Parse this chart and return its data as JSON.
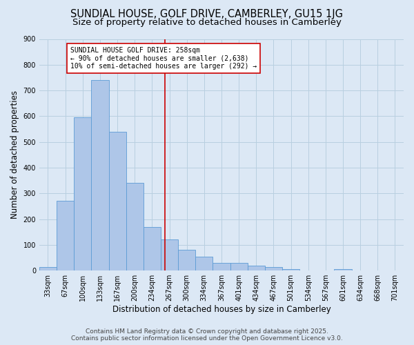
{
  "title": "SUNDIAL HOUSE, GOLF DRIVE, CAMBERLEY, GU15 1JG",
  "subtitle": "Size of property relative to detached houses in Camberley",
  "xlabel": "Distribution of detached houses by size in Camberley",
  "ylabel": "Number of detached properties",
  "categories": [
    "33sqm",
    "67sqm",
    "100sqm",
    "133sqm",
    "167sqm",
    "200sqm",
    "234sqm",
    "267sqm",
    "300sqm",
    "334sqm",
    "367sqm",
    "401sqm",
    "434sqm",
    "467sqm",
    "501sqm",
    "534sqm",
    "567sqm",
    "601sqm",
    "634sqm",
    "668sqm",
    "701sqm"
  ],
  "values": [
    15,
    270,
    595,
    740,
    540,
    340,
    170,
    120,
    80,
    55,
    30,
    30,
    20,
    15,
    5,
    0,
    0,
    5,
    0,
    0,
    0
  ],
  "bar_color": "#aec6e8",
  "bar_edge_color": "#5b9bd5",
  "bg_color": "#dce8f5",
  "grid_color": "#b8cfe0",
  "vline_color": "#cc0000",
  "annotation_text": "SUNDIAL HOUSE GOLF DRIVE: 258sqm\n← 90% of detached houses are smaller (2,638)\n10% of semi-detached houses are larger (292) →",
  "annotation_box_facecolor": "#ffffff",
  "annotation_box_edgecolor": "#cc0000",
  "ylim": [
    0,
    900
  ],
  "yticks": [
    0,
    100,
    200,
    300,
    400,
    500,
    600,
    700,
    800,
    900
  ],
  "footer_line1": "Contains HM Land Registry data © Crown copyright and database right 2025.",
  "footer_line2": "Contains public sector information licensed under the Open Government Licence v3.0.",
  "title_fontsize": 10.5,
  "subtitle_fontsize": 9.5,
  "xlabel_fontsize": 8.5,
  "ylabel_fontsize": 8.5,
  "tick_fontsize": 7,
  "annotation_fontsize": 7,
  "footer_fontsize": 6.5
}
